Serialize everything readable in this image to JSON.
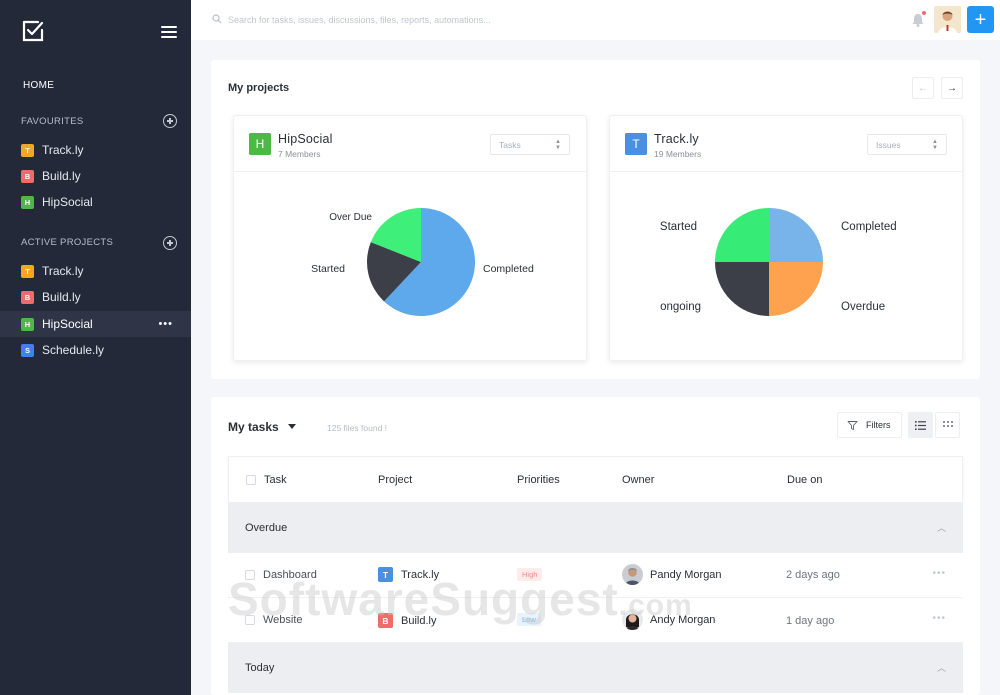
{
  "sidebar": {
    "home": "HOME",
    "favourites_label": "FAVOURITES",
    "active_label": "ACTIVE PROJECTS",
    "favourites": [
      {
        "letter": "T",
        "name": "Track.ly",
        "color": "#f5a623"
      },
      {
        "letter": "B",
        "name": "Build.ly",
        "color": "#f26b6b"
      },
      {
        "letter": "H",
        "name": "HipSocial",
        "color": "#4cb944"
      }
    ],
    "active": [
      {
        "letter": "T",
        "name": "Track.ly",
        "color": "#f5a623"
      },
      {
        "letter": "B",
        "name": "Build.ly",
        "color": "#f26b6b"
      },
      {
        "letter": "H",
        "name": "HipSocial",
        "color": "#4cb944"
      },
      {
        "letter": "S",
        "name": "Schedule.ly",
        "color": "#3b82f6"
      }
    ],
    "active_more": "•••"
  },
  "topbar": {
    "search_placeholder": "Search for tasks, issues, discussions, files, reports, automations...",
    "add_label": "+"
  },
  "projects": {
    "title": "My projects",
    "prev": "←",
    "next": "→",
    "cards": [
      {
        "letter": "H",
        "color": "#4cb944",
        "name": "HipSocial",
        "members": "7 Members",
        "select": "Tasks",
        "chart_data": {
          "type": "pie",
          "slices": [
            {
              "label": "Completed",
              "value": 62,
              "color": "#5ea9ec"
            },
            {
              "label": "Started",
              "value": 19,
              "color": "#3d3f48"
            },
            {
              "label": "Over Due",
              "value": 19,
              "color": "#3ef07a"
            }
          ]
        }
      },
      {
        "letter": "T",
        "color": "#4a90e2",
        "name": "Track.ly",
        "members": "19 Members",
        "select": "Issues",
        "chart_data": {
          "type": "pie",
          "slices": [
            {
              "label": "Completed",
              "value": 25,
              "color": "#78b4ea"
            },
            {
              "label": "Overdue",
              "value": 25,
              "color": "#ffa24f"
            },
            {
              "label": "ongoing",
              "value": 25,
              "color": "#3d3f48"
            },
            {
              "label": "Started",
              "value": 25,
              "color": "#36ec77"
            }
          ]
        }
      }
    ]
  },
  "tasks": {
    "title": "My tasks",
    "files_found": "125 files found !",
    "filters": "Filters",
    "columns": {
      "task": "Task",
      "project": "Project",
      "priorities": "Priorities",
      "owner": "Owner",
      "due": "Due on"
    },
    "groups": [
      {
        "label": "Overdue",
        "rows": [
          {
            "task": "Dashboard",
            "project_letter": "T",
            "project_color": "#4a90e2",
            "project": "Track.ly",
            "priority": "High",
            "priority_class": "high",
            "owner": "Pandy Morgan",
            "due": "2 days ago"
          },
          {
            "task": "Website",
            "project_letter": "B",
            "project_color": "#f26b6b",
            "project": "Build.ly",
            "priority": "Low",
            "priority_class": "low",
            "owner": "Andy Morgan",
            "due": "1 day ago"
          }
        ]
      },
      {
        "label": "Today",
        "rows": []
      }
    ],
    "row_more": "•••"
  },
  "watermark": {
    "main": "SoftwareSuggest",
    "suffix": ".com"
  }
}
